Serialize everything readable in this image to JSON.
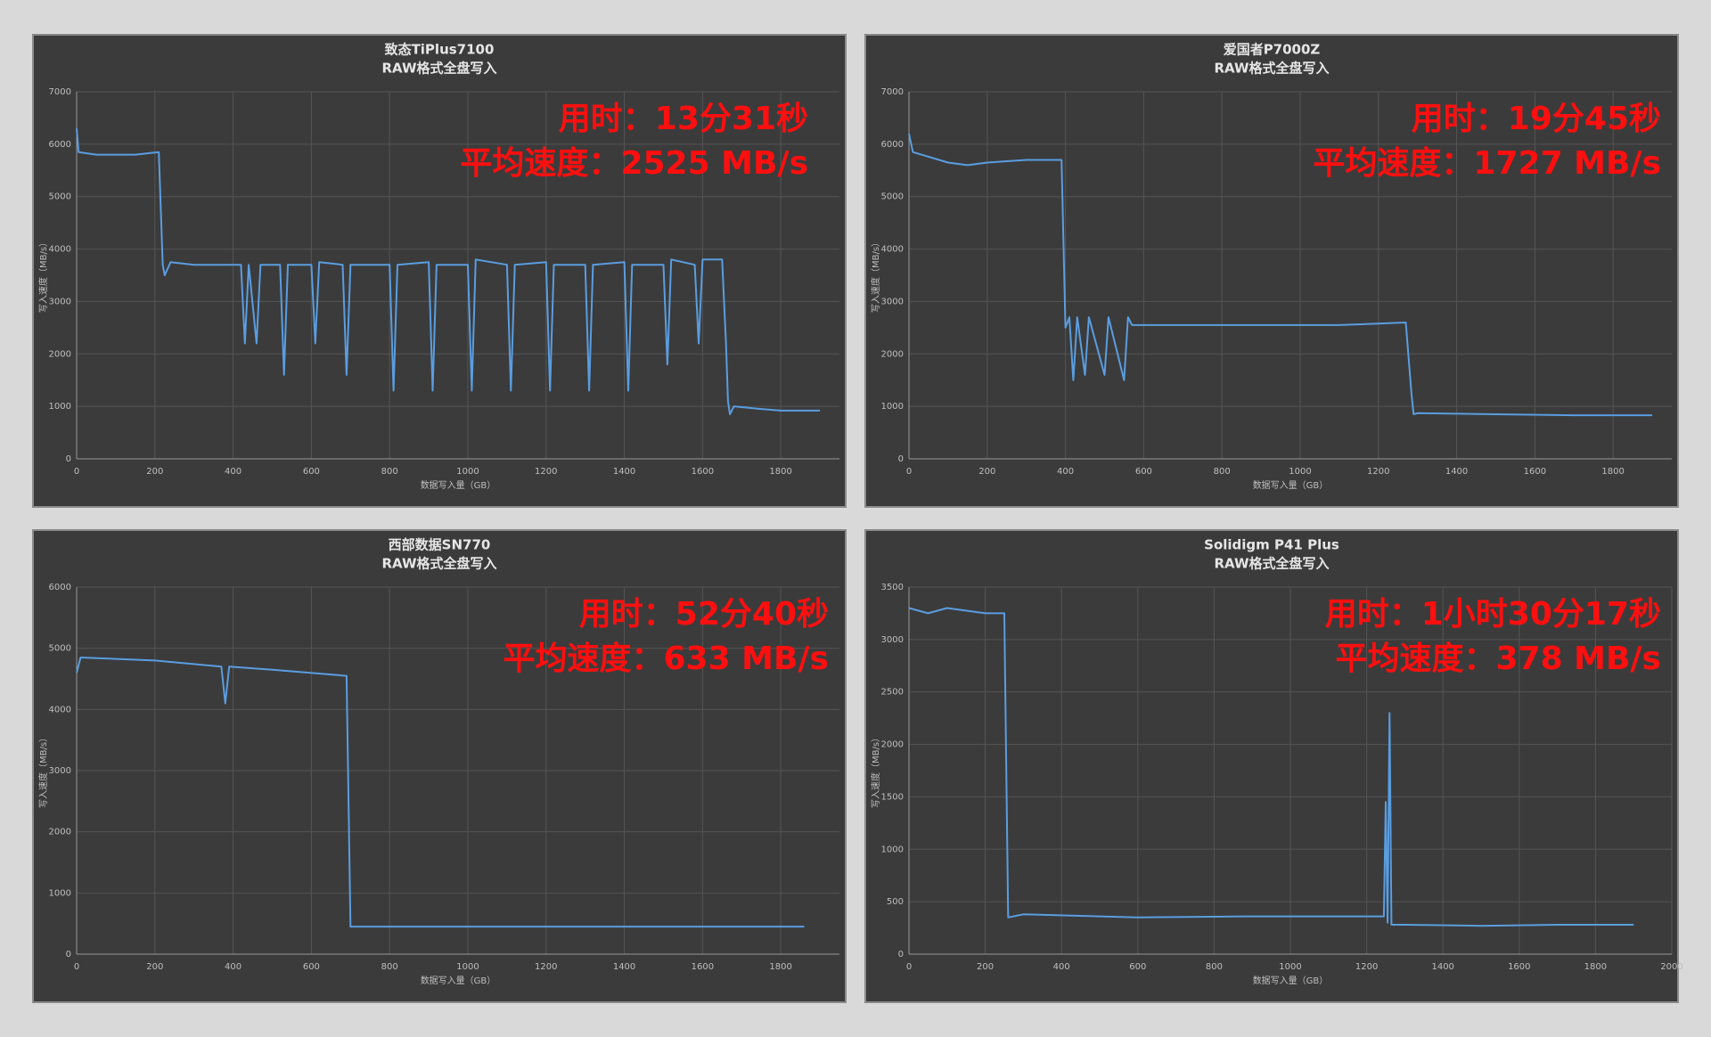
{
  "chart_data": [
    {
      "type": "line",
      "title": "致态TiPlus7100",
      "subtitle": "RAW格式全盘写入",
      "annotations": [
        "用时：13分31秒",
        "平均速度：2525 MB/s"
      ],
      "x_label": "数据写入量（GB）",
      "y_label": "写入速度（MB/s）",
      "color": "#5a9de0",
      "grid": true,
      "xlim": [
        0,
        1950
      ],
      "ylim": [
        0,
        7000
      ],
      "xticks": [
        0,
        200,
        400,
        600,
        800,
        1000,
        1200,
        1400,
        1600,
        1800
      ],
      "yticks": [
        0,
        1000,
        2000,
        3000,
        4000,
        5000,
        6000,
        7000
      ],
      "x": [
        0,
        5,
        50,
        100,
        150,
        210,
        220,
        225,
        240,
        300,
        420,
        430,
        440,
        460,
        470,
        520,
        530,
        540,
        600,
        610,
        620,
        680,
        690,
        700,
        800,
        810,
        820,
        900,
        910,
        920,
        1000,
        1010,
        1020,
        1100,
        1110,
        1120,
        1200,
        1210,
        1220,
        1300,
        1310,
        1320,
        1400,
        1410,
        1420,
        1500,
        1510,
        1520,
        1580,
        1590,
        1600,
        1650,
        1660,
        1665,
        1670,
        1680,
        1750,
        1800,
        1900
      ],
      "values": [
        6300,
        5850,
        5800,
        5800,
        5800,
        5850,
        3700,
        3500,
        3750,
        3700,
        3700,
        2200,
        3700,
        2200,
        3700,
        3700,
        1600,
        3700,
        3700,
        2200,
        3750,
        3700,
        1600,
        3700,
        3700,
        1300,
        3700,
        3750,
        1300,
        3700,
        3700,
        1300,
        3800,
        3700,
        1300,
        3700,
        3750,
        1300,
        3700,
        3700,
        1300,
        3700,
        3750,
        1300,
        3700,
        3700,
        1800,
        3800,
        3700,
        2200,
        3800,
        3800,
        2200,
        1100,
        850,
        1000,
        950,
        920,
        920
      ]
    },
    {
      "type": "line",
      "title": "爱国者P7000Z",
      "subtitle": "RAW格式全盘写入",
      "annotations": [
        "用时：19分45秒",
        "平均速度：1727 MB/s"
      ],
      "x_label": "数据写入量（GB）",
      "y_label": "写入速度（MB/s）",
      "color": "#5a9de0",
      "grid": true,
      "xlim": [
        0,
        1950
      ],
      "ylim": [
        0,
        7000
      ],
      "xticks": [
        0,
        200,
        400,
        600,
        800,
        1000,
        1200,
        1400,
        1600,
        1800
      ],
      "yticks": [
        0,
        1000,
        2000,
        3000,
        4000,
        5000,
        6000,
        7000
      ],
      "x": [
        0,
        10,
        100,
        150,
        200,
        300,
        390,
        400,
        410,
        420,
        430,
        450,
        460,
        500,
        510,
        550,
        560,
        570,
        700,
        900,
        1100,
        1270,
        1285,
        1290,
        1300,
        1500,
        1700,
        1900
      ],
      "values": [
        6200,
        5850,
        5650,
        5600,
        5650,
        5700,
        5700,
        2500,
        2700,
        1500,
        2700,
        1600,
        2700,
        1600,
        2700,
        1500,
        2700,
        2550,
        2550,
        2550,
        2550,
        2600,
        1200,
        850,
        870,
        850,
        830,
        830
      ]
    },
    {
      "type": "line",
      "title": "西部数据SN770",
      "subtitle": "RAW格式全盘写入",
      "annotations": [
        "用时：52分40秒",
        "平均速度：633 MB/s"
      ],
      "x_label": "数据写入量（GB）",
      "y_label": "写入速度（MB/s）",
      "color": "#5a9de0",
      "grid": true,
      "xlim": [
        0,
        1950
      ],
      "ylim": [
        0,
        6000
      ],
      "xticks": [
        0,
        200,
        400,
        600,
        800,
        1000,
        1200,
        1400,
        1600,
        1800
      ],
      "yticks": [
        0,
        1000,
        2000,
        3000,
        4000,
        5000,
        6000
      ],
      "x": [
        0,
        10,
        200,
        370,
        380,
        390,
        500,
        690,
        700,
        720,
        1000,
        1300,
        1600,
        1860
      ],
      "values": [
        4600,
        4850,
        4800,
        4700,
        4100,
        4700,
        4650,
        4550,
        450,
        450,
        450,
        450,
        450,
        450
      ]
    },
    {
      "type": "line",
      "title": "Solidigm P41 Plus",
      "subtitle": "RAW格式全盘写入",
      "annotations": [
        "用时：1小时30分17秒",
        "平均速度：378 MB/s"
      ],
      "x_label": "数据写入量（GB）",
      "y_label": "写入速度（MB/s）",
      "color": "#5a9de0",
      "grid": true,
      "xlim": [
        0,
        2000
      ],
      "ylim": [
        0,
        3500
      ],
      "xticks": [
        0,
        200,
        400,
        600,
        800,
        1000,
        1200,
        1400,
        1600,
        1800,
        2000
      ],
      "yticks": [
        0,
        500,
        1000,
        1500,
        2000,
        2500,
        3000,
        3500
      ],
      "x": [
        0,
        50,
        100,
        200,
        250,
        260,
        300,
        600,
        900,
        1200,
        1245,
        1250,
        1255,
        1260,
        1265,
        1300,
        1500,
        1700,
        1900
      ],
      "values": [
        3300,
        3250,
        3300,
        3250,
        3250,
        350,
        380,
        350,
        360,
        360,
        360,
        1450,
        300,
        2300,
        280,
        280,
        270,
        280,
        280
      ]
    }
  ]
}
